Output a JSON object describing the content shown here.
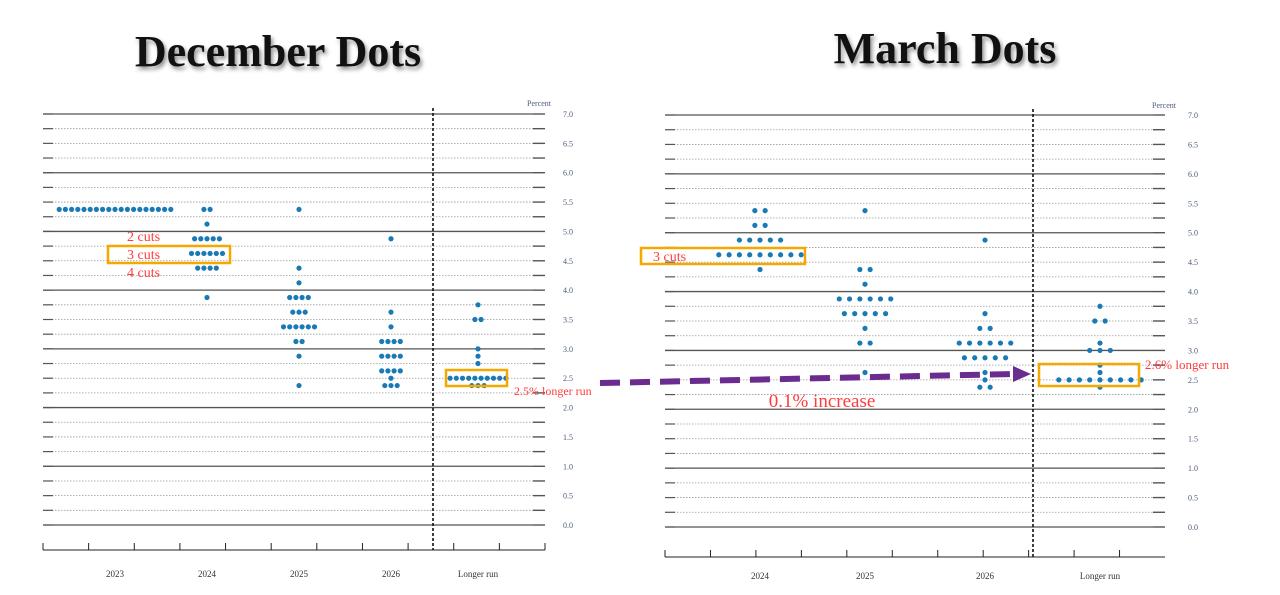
{
  "titles": {
    "left": "December Dots",
    "right": "March Dots"
  },
  "annotations": {
    "cuts2": "2 cuts",
    "cuts3": "3 cuts",
    "cuts4": "4 cuts",
    "march_cuts3": "3 cuts",
    "dec_longer": "2.5% longer run",
    "mar_longer": "2.6% longer run",
    "increase": "0.1% increase"
  },
  "colors": {
    "dot": "#1a7ab5",
    "box": "#f5a800",
    "arrow": "#6a2c8e",
    "annotation": "#ff3b3b"
  },
  "chart_data": [
    {
      "type": "scatter",
      "title": "December Dots",
      "ylabel": "Percent",
      "ylim": [
        0,
        7
      ],
      "yticks": [
        "0.0",
        "0.5",
        "1.0",
        "1.5",
        "2.0",
        "2.5",
        "3.0",
        "3.5",
        "4.0",
        "4.5",
        "5.0",
        "5.5",
        "6.0",
        "6.5",
        "7.0"
      ],
      "categories": [
        "2023",
        "2024",
        "2025",
        "2026",
        "Longer run"
      ],
      "dots": [
        [
          [
            5.375,
            19
          ]
        ],
        [
          [
            5.375,
            2
          ],
          [
            5.125,
            1
          ],
          [
            4.875,
            5
          ],
          [
            4.625,
            6
          ],
          [
            4.375,
            4
          ],
          [
            3.875,
            1
          ]
        ],
        [
          [
            5.375,
            1
          ],
          [
            4.375,
            1
          ],
          [
            4.125,
            1
          ],
          [
            3.875,
            4
          ],
          [
            3.625,
            3
          ],
          [
            3.375,
            6
          ],
          [
            3.125,
            2
          ],
          [
            2.875,
            1
          ],
          [
            2.375,
            1
          ]
        ],
        [
          [
            4.875,
            1
          ],
          [
            3.625,
            1
          ],
          [
            3.375,
            1
          ],
          [
            3.125,
            4
          ],
          [
            2.875,
            4
          ],
          [
            2.625,
            4
          ],
          [
            2.5,
            1
          ],
          [
            2.375,
            3
          ]
        ],
        [
          [
            3.75,
            1
          ],
          [
            3.5,
            2
          ],
          [
            3.0,
            1
          ],
          [
            2.875,
            1
          ],
          [
            2.75,
            1
          ],
          [
            2.5,
            10
          ],
          [
            2.375,
            3
          ]
        ]
      ]
    },
    {
      "type": "scatter",
      "title": "March Dots",
      "ylabel": "Percent",
      "ylim": [
        0,
        7
      ],
      "yticks": [
        "0.0",
        "0.5",
        "1.0",
        "1.5",
        "2.0",
        "2.5",
        "3.0",
        "3.5",
        "4.0",
        "4.5",
        "5.0",
        "5.5",
        "6.0",
        "6.5",
        "7.0"
      ],
      "categories": [
        "2024",
        "2025",
        "2026",
        "Longer run"
      ],
      "dots": [
        [
          [
            5.375,
            2
          ],
          [
            5.125,
            2
          ],
          [
            4.875,
            5
          ],
          [
            4.625,
            9
          ],
          [
            4.375,
            1
          ]
        ],
        [
          [
            5.375,
            1
          ],
          [
            4.375,
            2
          ],
          [
            4.125,
            1
          ],
          [
            3.875,
            6
          ],
          [
            3.625,
            5
          ],
          [
            3.375,
            1
          ],
          [
            3.125,
            2
          ],
          [
            2.625,
            1
          ]
        ],
        [
          [
            4.875,
            1
          ],
          [
            3.625,
            1
          ],
          [
            3.375,
            2
          ],
          [
            3.125,
            6
          ],
          [
            2.875,
            5
          ],
          [
            2.625,
            1
          ],
          [
            2.5,
            1
          ],
          [
            2.375,
            2
          ]
        ],
        [
          [
            3.75,
            1
          ],
          [
            3.5,
            2
          ],
          [
            3.125,
            1
          ],
          [
            3.0,
            3
          ],
          [
            2.75,
            1
          ],
          [
            2.625,
            1
          ],
          [
            2.5,
            9
          ],
          [
            2.375,
            1
          ]
        ]
      ]
    }
  ]
}
